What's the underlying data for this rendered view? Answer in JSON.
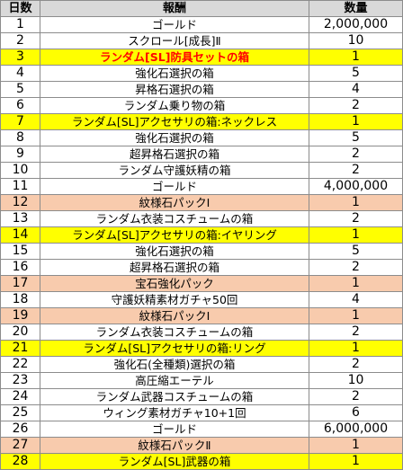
{
  "headers": {
    "day": "日数",
    "reward": "報酬",
    "qty": "数量"
  },
  "colors": {
    "highlight_yellow": "#ffff00",
    "highlight_pink": "#f8cbad",
    "header_gray": "#d9d9d9",
    "emphasis_red": "#ff0000"
  },
  "rows": [
    {
      "day": "1",
      "reward": "ゴールド",
      "qty": "2,000,000",
      "highlight": ""
    },
    {
      "day": "2",
      "reward": "スクロール[成長]Ⅱ",
      "qty": "10",
      "highlight": ""
    },
    {
      "day": "3",
      "reward": "ランダム[SL]防具セットの箱",
      "qty": "1",
      "highlight": "yellow",
      "red_text": true
    },
    {
      "day": "4",
      "reward": "強化石選択の箱",
      "qty": "5",
      "highlight": ""
    },
    {
      "day": "5",
      "reward": "昇格石選択の箱",
      "qty": "4",
      "highlight": ""
    },
    {
      "day": "6",
      "reward": "ランダム乗り物の箱",
      "qty": "2",
      "highlight": ""
    },
    {
      "day": "7",
      "reward": "ランダム[SL]アクセサリの箱:ネックレス",
      "qty": "1",
      "highlight": "yellow"
    },
    {
      "day": "8",
      "reward": "強化石選択の箱",
      "qty": "5",
      "highlight": ""
    },
    {
      "day": "9",
      "reward": "超昇格石選択の箱",
      "qty": "2",
      "highlight": ""
    },
    {
      "day": "10",
      "reward": "ランダム守護妖精の箱",
      "qty": "2",
      "highlight": ""
    },
    {
      "day": "11",
      "reward": "ゴールド",
      "qty": "4,000,000",
      "highlight": ""
    },
    {
      "day": "12",
      "reward": "紋様石パックⅠ",
      "qty": "1",
      "highlight": "pink"
    },
    {
      "day": "13",
      "reward": "ランダム衣装コスチュームの箱",
      "qty": "2",
      "highlight": ""
    },
    {
      "day": "14",
      "reward": "ランダム[SL]アクセサリの箱:イヤリング",
      "qty": "1",
      "highlight": "yellow"
    },
    {
      "day": "15",
      "reward": "強化石選択の箱",
      "qty": "5",
      "highlight": ""
    },
    {
      "day": "16",
      "reward": "超昇格石選択の箱",
      "qty": "2",
      "highlight": ""
    },
    {
      "day": "17",
      "reward": "宝石強化パック",
      "qty": "1",
      "highlight": "pink"
    },
    {
      "day": "18",
      "reward": "守護妖精素材ガチャ50回",
      "qty": "4",
      "highlight": ""
    },
    {
      "day": "19",
      "reward": "紋様石パックⅠ",
      "qty": "1",
      "highlight": "pink"
    },
    {
      "day": "20",
      "reward": "ランダム衣装コスチュームの箱",
      "qty": "2",
      "highlight": ""
    },
    {
      "day": "21",
      "reward": "ランダム[SL]アクセサリの箱:リング",
      "qty": "1",
      "highlight": "yellow"
    },
    {
      "day": "22",
      "reward": "強化石(全種類)選択の箱",
      "qty": "2",
      "highlight": ""
    },
    {
      "day": "23",
      "reward": "高圧縮エーテル",
      "qty": "10",
      "highlight": ""
    },
    {
      "day": "24",
      "reward": "ランダム武器コスチュームの箱",
      "qty": "2",
      "highlight": ""
    },
    {
      "day": "25",
      "reward": "ウィング素材ガチャ10+1回",
      "qty": "6",
      "highlight": ""
    },
    {
      "day": "26",
      "reward": "ゴールド",
      "qty": "6,000,000",
      "highlight": ""
    },
    {
      "day": "27",
      "reward": "紋様石パックⅡ",
      "qty": "1",
      "highlight": "pink"
    },
    {
      "day": "28",
      "reward": "ランダム[SL]武器の箱",
      "qty": "1",
      "highlight": "yellow"
    }
  ]
}
